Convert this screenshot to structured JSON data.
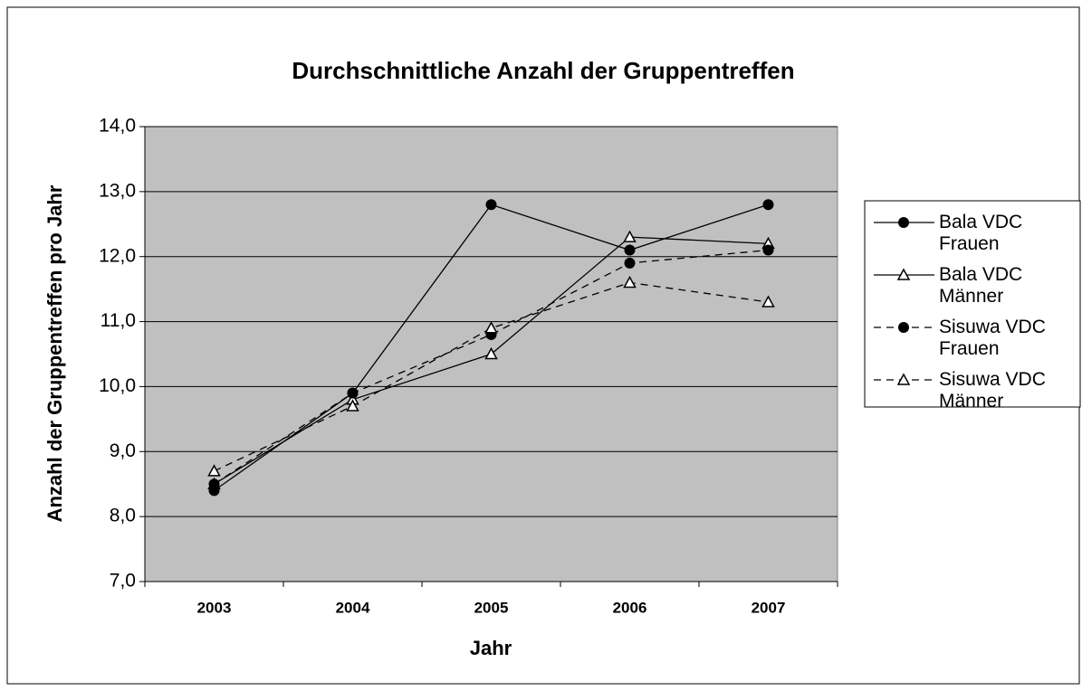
{
  "chart_data": {
    "type": "line",
    "title": "Durchschnittliche Anzahl der Gruppentreffen",
    "x_label": "Jahr",
    "y_label": "Anzahl der Gruppentreffen pro Jahr",
    "categories": [
      "2003",
      "2004",
      "2005",
      "2006",
      "2007"
    ],
    "series": [
      {
        "name": "Bala VDC Frauen",
        "color": "#000000",
        "line_style": "solid",
        "marker": "circle",
        "values": [
          8.4,
          9.9,
          12.8,
          12.1,
          12.8
        ]
      },
      {
        "name": "Bala VDC Männer",
        "color": "#000000",
        "line_style": "solid",
        "marker": "triangle",
        "values": [
          8.5,
          9.8,
          10.5,
          12.3,
          12.2
        ]
      },
      {
        "name": "Sisuwa VDC Frauen",
        "color": "#000000",
        "line_style": "dashed",
        "marker": "circle",
        "values": [
          8.5,
          9.9,
          10.8,
          11.9,
          12.1
        ]
      },
      {
        "name": "Sisuwa VDC Männer",
        "color": "#000000",
        "line_style": "dashed",
        "marker": "triangle",
        "values": [
          8.7,
          9.7,
          10.9,
          11.6,
          11.3
        ]
      }
    ],
    "ylim": [
      7,
      14
    ],
    "yticks": [
      {
        "value": 7,
        "label": "7,0"
      },
      {
        "value": 8,
        "label": "8,0"
      },
      {
        "value": 9,
        "label": "9,0"
      },
      {
        "value": 10,
        "label": "10,0"
      },
      {
        "value": 11,
        "label": "11,0"
      },
      {
        "value": 12,
        "label": "12,0"
      },
      {
        "value": 13,
        "label": "13,0"
      },
      {
        "value": 14,
        "label": "14,0"
      }
    ],
    "grid": true,
    "plot_background": "#c0c0c0",
    "legend": "right"
  }
}
